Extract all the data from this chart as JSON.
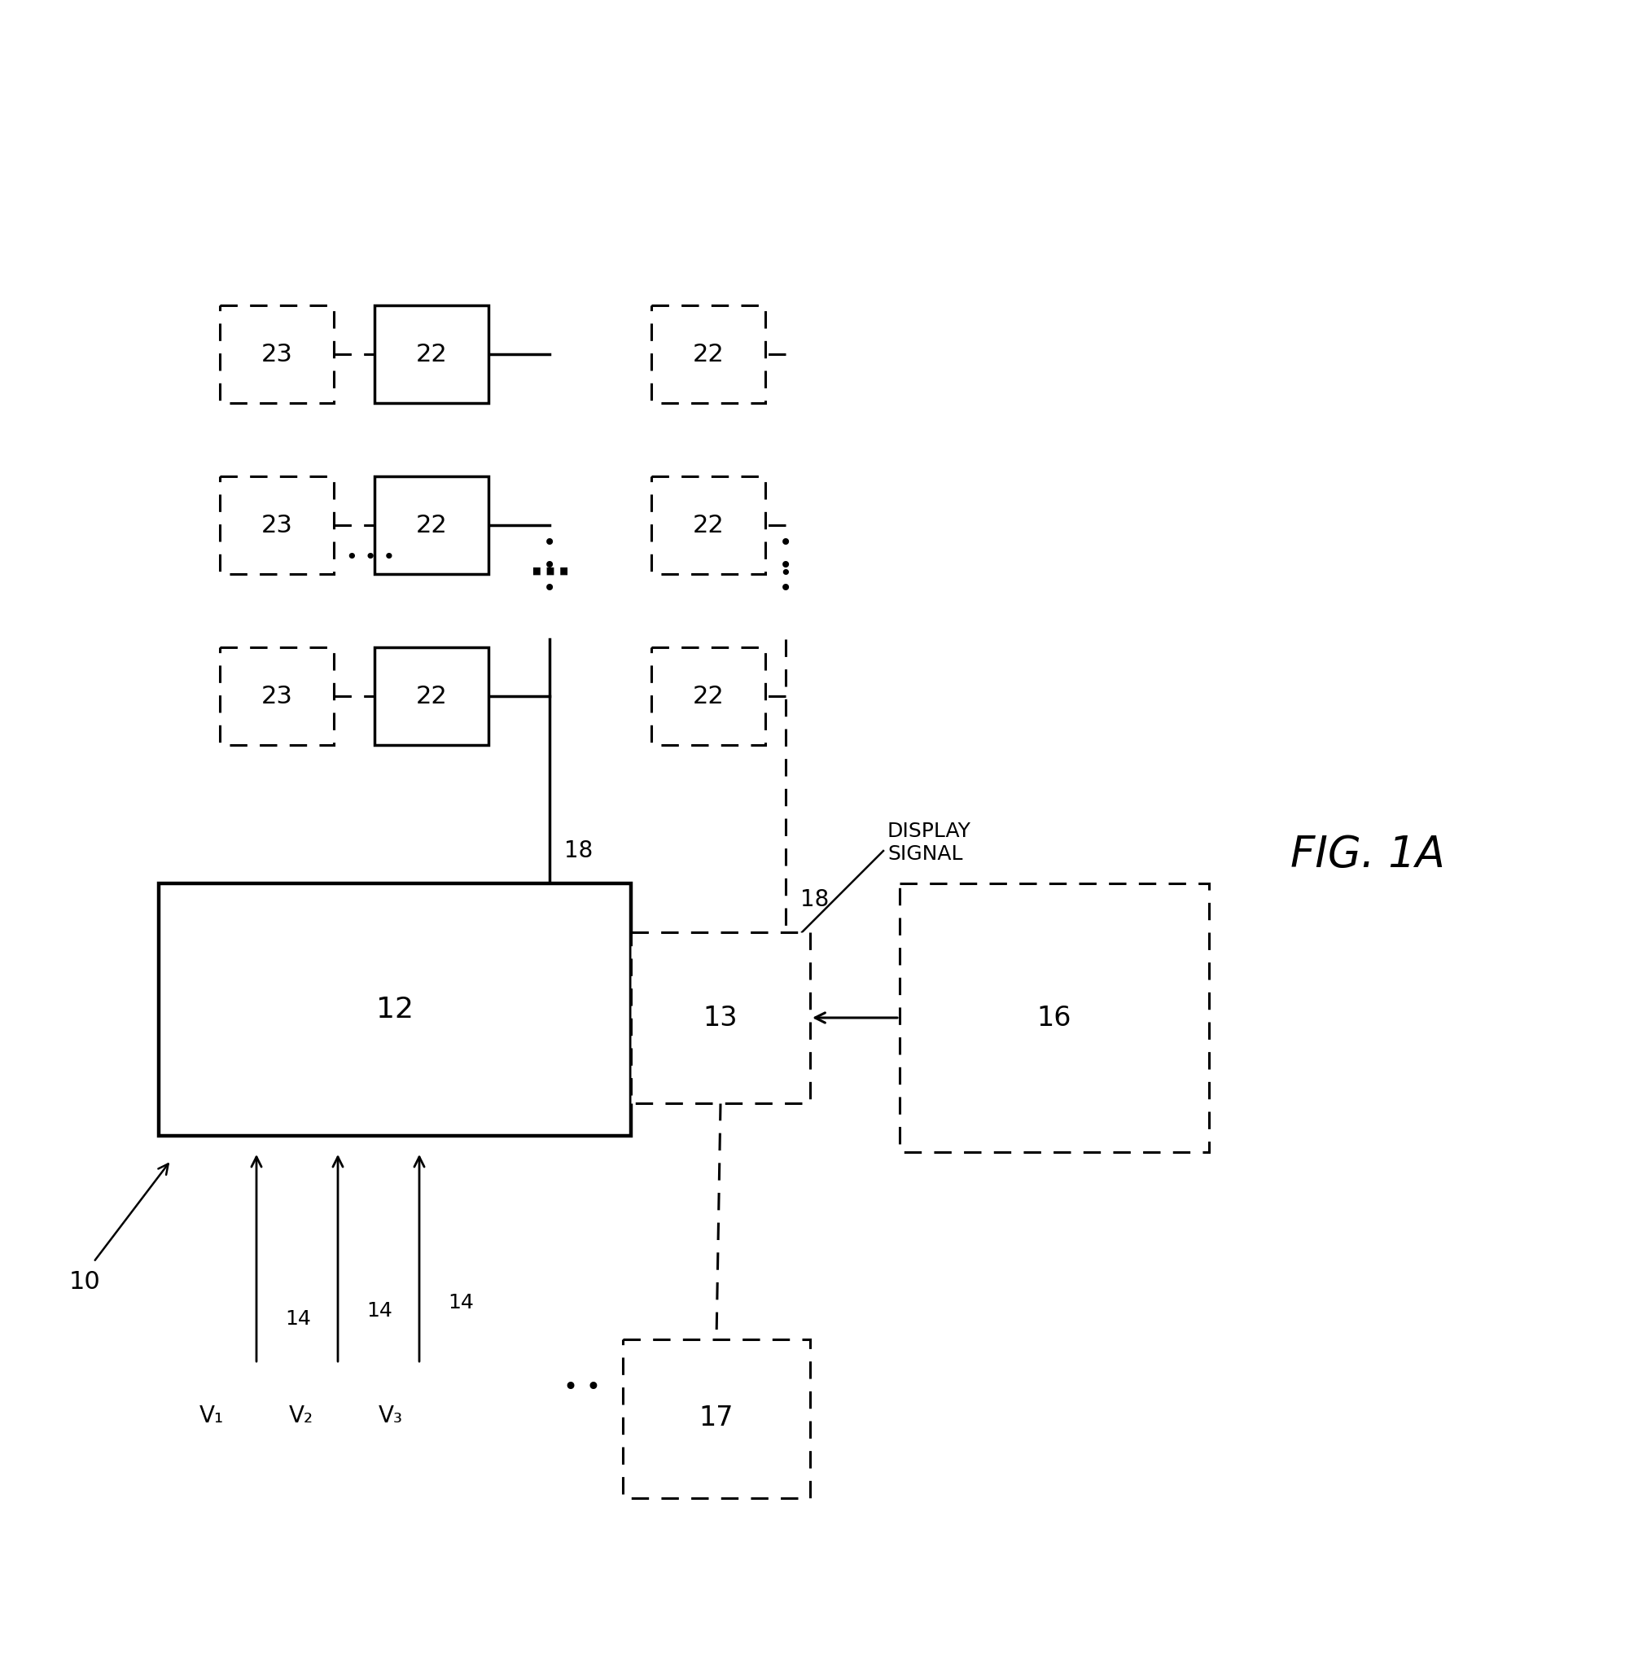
{
  "fig_width": 20.24,
  "fig_height": 20.56,
  "bg_color": "#ffffff",
  "title": "FIG. 1A",
  "label_10": "10",
  "label_12": "12",
  "label_13": "13",
  "label_14": "14",
  "label_16": "16",
  "label_17": "17",
  "label_18": "18",
  "label_22": "22",
  "label_23": "23",
  "display_signal": "DISPLAY\nSIGNAL",
  "V1": "V₁",
  "V2": "V₂",
  "V3": "V₃",
  "lw_solid": 2.5,
  "lw_dashed": 2.2,
  "dash_on": 7,
  "dash_off": 5
}
